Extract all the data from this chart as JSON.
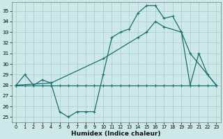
{
  "xlabel": "Humidex (Indice chaleur)",
  "bg_color": "#cce8e8",
  "grid_color": "#aacccc",
  "line_color": "#1a6e6e",
  "xlim": [
    -0.5,
    23.5
  ],
  "ylim": [
    24.5,
    35.8
  ],
  "yticks": [
    25,
    26,
    27,
    28,
    29,
    30,
    31,
    32,
    33,
    34,
    35
  ],
  "xticks": [
    0,
    1,
    2,
    3,
    4,
    5,
    6,
    7,
    8,
    9,
    10,
    11,
    12,
    13,
    14,
    15,
    16,
    17,
    18,
    19,
    20,
    21,
    22,
    23
  ],
  "s1_x": [
    0,
    1,
    2,
    3,
    4,
    5,
    6,
    7,
    8,
    9,
    10,
    11,
    12,
    13,
    14,
    15,
    16,
    17,
    18,
    19,
    20,
    21,
    22,
    23
  ],
  "s1_y": [
    28.0,
    29.0,
    28.0,
    28.5,
    28.2,
    25.5,
    25.0,
    25.5,
    25.5,
    25.5,
    29.0,
    32.5,
    33.0,
    33.3,
    34.8,
    35.5,
    35.5,
    34.3,
    34.5,
    33.0,
    28.0,
    31.0,
    29.0,
    28.0
  ],
  "s2_x": [
    0,
    1,
    2,
    3,
    4,
    5,
    6,
    7,
    8,
    9,
    10,
    11,
    12,
    13,
    14,
    15,
    16,
    17,
    18,
    19,
    20,
    21,
    22,
    23
  ],
  "s2_y": [
    28.0,
    28.0,
    28.0,
    28.0,
    28.0,
    28.0,
    28.0,
    28.0,
    28.0,
    28.0,
    28.0,
    28.0,
    28.0,
    28.0,
    28.0,
    28.0,
    28.0,
    28.0,
    28.0,
    28.0,
    28.0,
    28.0,
    28.0,
    28.0
  ],
  "s3_x": [
    0,
    4,
    10,
    14,
    15,
    16,
    17,
    19,
    20,
    23
  ],
  "s3_y": [
    28.0,
    28.2,
    30.5,
    32.5,
    33.0,
    34.0,
    33.5,
    33.0,
    31.0,
    28.0
  ]
}
